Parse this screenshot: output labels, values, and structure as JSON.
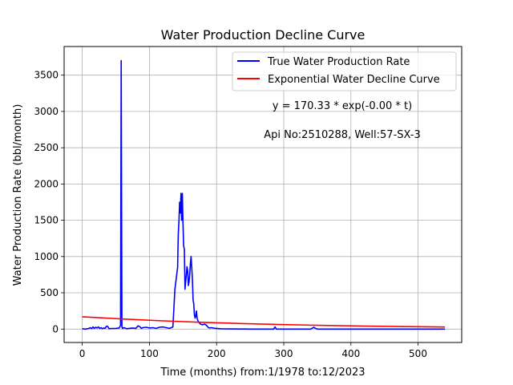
{
  "chart_data": {
    "type": "line",
    "title": "Water Production Decline Curve",
    "xlabel": "Time (months) from:1/1978 to:12/2023",
    "ylabel": "Water Production Rate (bbl/month)",
    "xlim": [
      -27,
      565
    ],
    "ylim": [
      -185,
      3895
    ],
    "xticks": [
      0,
      100,
      200,
      300,
      400,
      500
    ],
    "yticks": [
      0,
      500,
      1000,
      1500,
      2000,
      2500,
      3000,
      3500
    ],
    "grid": true,
    "legend_position": "upper-right",
    "annotations": [
      "y = 170.33 * exp(-0.00 * t)",
      "Api No:2510288, Well:57-SX-3"
    ],
    "series": [
      {
        "name": "True Water Production Rate",
        "color": "#0000ff",
        "x": [
          0,
          5,
          10,
          12,
          14,
          16,
          18,
          20,
          22,
          24,
          26,
          28,
          30,
          32,
          34,
          36,
          38,
          40,
          44,
          50,
          55,
          57,
          58,
          59,
          60,
          62,
          66,
          70,
          75,
          80,
          83,
          86,
          88,
          90,
          95,
          100,
          105,
          110,
          115,
          120,
          125,
          130,
          135,
          138,
          140,
          142,
          143,
          144,
          145,
          146,
          147,
          148,
          149,
          150,
          151,
          152,
          153,
          154,
          155,
          156,
          157,
          158,
          159,
          160,
          161,
          162,
          163,
          164,
          165,
          166,
          167,
          168,
          169,
          170,
          171,
          172,
          173,
          174,
          175,
          176,
          178,
          180,
          182,
          185,
          188,
          190,
          192,
          195,
          198,
          200,
          205,
          210,
          220,
          230,
          240,
          250,
          260,
          270,
          280,
          285,
          287,
          289,
          295,
          300,
          310,
          320,
          330,
          340,
          343,
          345,
          347,
          350,
          360,
          380,
          400,
          420,
          440,
          460,
          480,
          500,
          520,
          540
        ],
        "y": [
          5,
          0,
          10,
          20,
          5,
          30,
          10,
          25,
          15,
          30,
          10,
          20,
          5,
          15,
          10,
          40,
          35,
          5,
          8,
          10,
          15,
          50,
          3700,
          30,
          10,
          20,
          5,
          10,
          15,
          10,
          45,
          30,
          10,
          20,
          25,
          15,
          20,
          10,
          25,
          30,
          20,
          10,
          30,
          550,
          700,
          850,
          1300,
          1500,
          1750,
          1600,
          1870,
          1500,
          1870,
          1450,
          1150,
          1100,
          550,
          650,
          750,
          860,
          800,
          600,
          650,
          750,
          900,
          1000,
          850,
          700,
          400,
          350,
          200,
          150,
          180,
          250,
          150,
          120,
          100,
          90,
          80,
          70,
          60,
          60,
          70,
          50,
          20,
          15,
          20,
          15,
          10,
          10,
          5,
          3,
          2,
          1,
          1,
          0,
          0,
          0,
          0,
          0,
          30,
          0,
          0,
          0,
          0,
          0,
          0,
          0,
          15,
          25,
          10,
          0,
          0,
          0,
          0,
          0,
          0,
          0,
          0,
          0,
          0,
          0
        ]
      },
      {
        "name": "Exponential Water Decline Curve",
        "color": "#ff0000",
        "x": [
          0,
          60,
          120,
          180,
          240,
          300,
          360,
          420,
          480,
          540
        ],
        "y": [
          170.33,
          139,
          114,
          93,
          76,
          62,
          51,
          42,
          34,
          28
        ]
      }
    ]
  }
}
